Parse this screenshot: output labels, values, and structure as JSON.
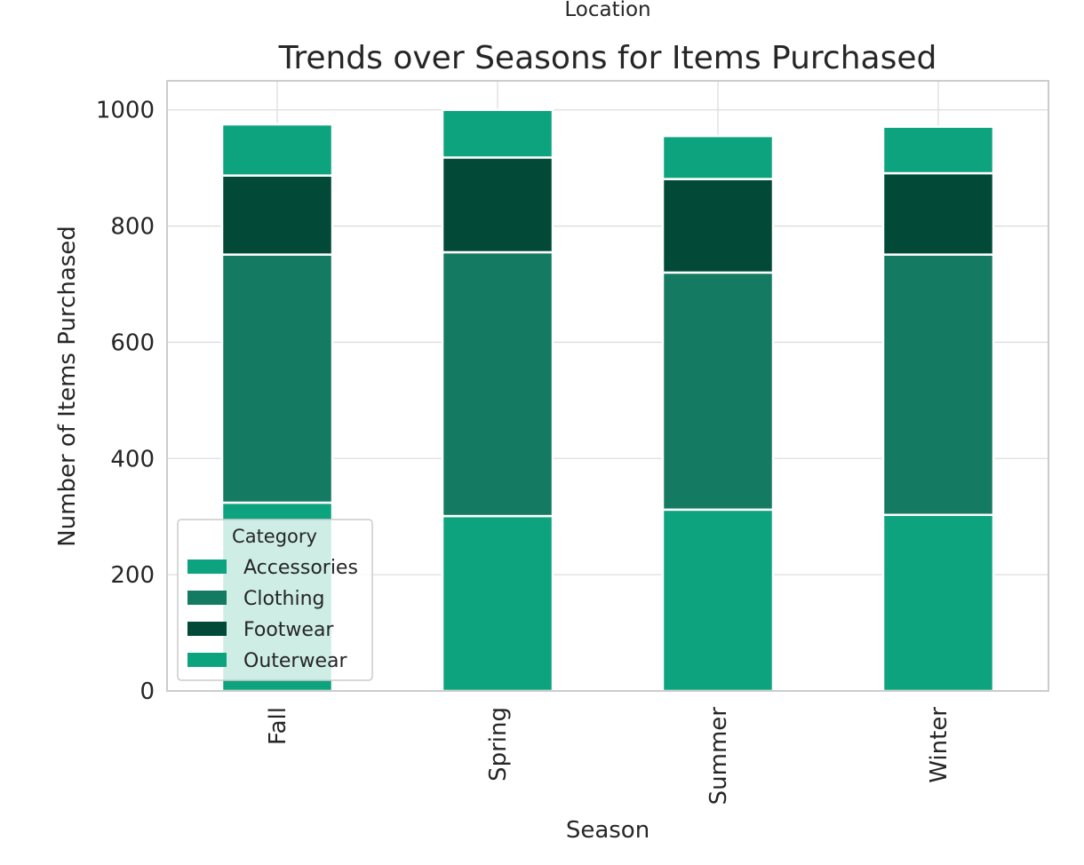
{
  "chart_data": {
    "type": "bar",
    "stacked": true,
    "suptitle": "Location",
    "title": "Trends over Seasons for Items Purchased",
    "xlabel": "Season",
    "ylabel": "Number of Items Purchased",
    "categories": [
      "Fall",
      "Spring",
      "Summer",
      "Winter"
    ],
    "ylim": [
      0,
      1050
    ],
    "yticks": [
      0,
      200,
      400,
      600,
      800,
      1000
    ],
    "grid": true,
    "legend": {
      "title": "Category",
      "placement": "lower-left"
    },
    "series": [
      {
        "name": "Accessories",
        "color": "#0ea37f",
        "values": [
          324,
          301,
          312,
          303
        ]
      },
      {
        "name": "Clothing",
        "color": "#157a62",
        "values": [
          427,
          454,
          408,
          448
        ]
      },
      {
        "name": "Footwear",
        "color": "#024a37",
        "values": [
          136,
          163,
          161,
          140
        ]
      },
      {
        "name": "Outerwear",
        "color": "#0ea37f",
        "values": [
          88,
          82,
          74,
          80
        ]
      }
    ]
  }
}
